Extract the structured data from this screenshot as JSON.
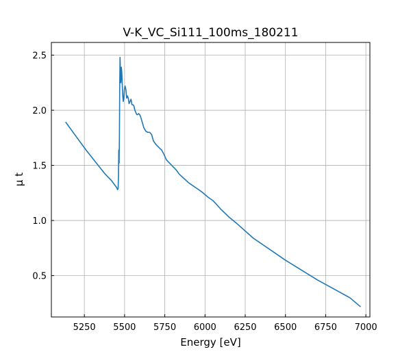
{
  "chart_data": {
    "type": "line",
    "title": "V-K_VC_Si111_100ms_180211",
    "xlabel": "Energy [eV]",
    "ylabel": "μ t",
    "xlim": [
      5045,
      7025
    ],
    "ylim": [
      0.125,
      2.615
    ],
    "x_ticks": [
      5250,
      5500,
      5750,
      6000,
      6250,
      6500,
      6750,
      7000
    ],
    "y_ticks": [
      0.5,
      1.0,
      1.5,
      2.0,
      2.5
    ],
    "x_tick_labels": [
      "5250",
      "5500",
      "5750",
      "6000",
      "6250",
      "6500",
      "6750",
      "7000"
    ],
    "y_tick_labels": [
      "0.5",
      "1.0",
      "1.5",
      "2.0",
      "2.5"
    ],
    "grid": true,
    "line_color": "#1f77b4",
    "series": [
      {
        "x": [
          5135,
          5200,
          5260,
          5320,
          5380,
          5420,
          5450,
          5457,
          5460,
          5462,
          5464,
          5466,
          5468,
          5470,
          5472,
          5474,
          5477,
          5480,
          5483,
          5486,
          5489,
          5492,
          5495,
          5499,
          5503,
          5508,
          5513,
          5518,
          5523,
          5528,
          5534,
          5540,
          5546,
          5552,
          5558,
          5564,
          5570,
          5576,
          5582,
          5588,
          5594,
          5600,
          5610,
          5620,
          5632,
          5644,
          5656,
          5668,
          5680,
          5695,
          5715,
          5730,
          5745,
          5760,
          5780,
          5800,
          5820,
          5840,
          5870,
          5900,
          5940,
          5980,
          6020,
          6050,
          6100,
          6150,
          6200,
          6300,
          6400,
          6500,
          6600,
          6700,
          6800,
          6900,
          6965
        ],
        "y": [
          1.89,
          1.76,
          1.64,
          1.53,
          1.42,
          1.36,
          1.3,
          1.28,
          1.29,
          1.4,
          1.64,
          1.52,
          1.75,
          2.25,
          2.48,
          2.36,
          2.25,
          2.39,
          2.34,
          2.22,
          2.12,
          2.08,
          2.11,
          2.19,
          2.22,
          2.19,
          2.11,
          2.13,
          2.11,
          2.06,
          2.08,
          2.1,
          2.05,
          2.05,
          2.04,
          2.0,
          1.98,
          1.96,
          1.96,
          1.97,
          1.96,
          1.94,
          1.89,
          1.84,
          1.81,
          1.8,
          1.8,
          1.78,
          1.72,
          1.69,
          1.66,
          1.64,
          1.6,
          1.55,
          1.52,
          1.49,
          1.46,
          1.42,
          1.38,
          1.34,
          1.3,
          1.26,
          1.21,
          1.18,
          1.1,
          1.03,
          0.97,
          0.84,
          0.74,
          0.64,
          0.55,
          0.46,
          0.38,
          0.3,
          0.22
        ]
      }
    ]
  }
}
